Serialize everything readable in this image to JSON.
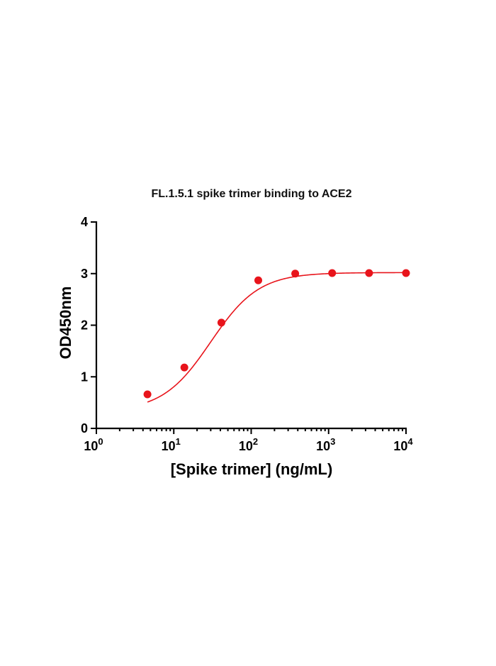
{
  "chart_data": {
    "type": "scatter",
    "title": "FL.1.5.1 spike trimer binding to ACE2",
    "xlabel": "[Spike trimer] (ng/mL)",
    "ylabel": "OD450nm",
    "x_scale": "log10",
    "xlim": [
      1,
      10000
    ],
    "ylim": [
      0,
      4
    ],
    "x_ticks": [
      {
        "value": 1,
        "base": "10",
        "exp": "0"
      },
      {
        "value": 10,
        "base": "10",
        "exp": "1"
      },
      {
        "value": 100,
        "base": "10",
        "exp": "2"
      },
      {
        "value": 1000,
        "base": "10",
        "exp": "3"
      },
      {
        "value": 10000,
        "base": "10",
        "exp": "4"
      }
    ],
    "y_ticks": [
      {
        "value": 0,
        "label": "0"
      },
      {
        "value": 1,
        "label": "1"
      },
      {
        "value": 2,
        "label": "2"
      },
      {
        "value": 3,
        "label": "3"
      },
      {
        "value": 4,
        "label": "4"
      }
    ],
    "grid": false,
    "series": [
      {
        "color": "#e8141b",
        "x": [
          4.57,
          13.7,
          41.2,
          123.5,
          370.4,
          1111,
          3333,
          10000
        ],
        "y": [
          0.66,
          1.18,
          2.05,
          2.87,
          3.0,
          3.01,
          3.01,
          3.01
        ]
      }
    ],
    "fit": {
      "model": "4PL",
      "color": "#e8141b",
      "bottom": 0.33,
      "top": 3.02,
      "ec50": 30,
      "hill": 1.4
    }
  }
}
